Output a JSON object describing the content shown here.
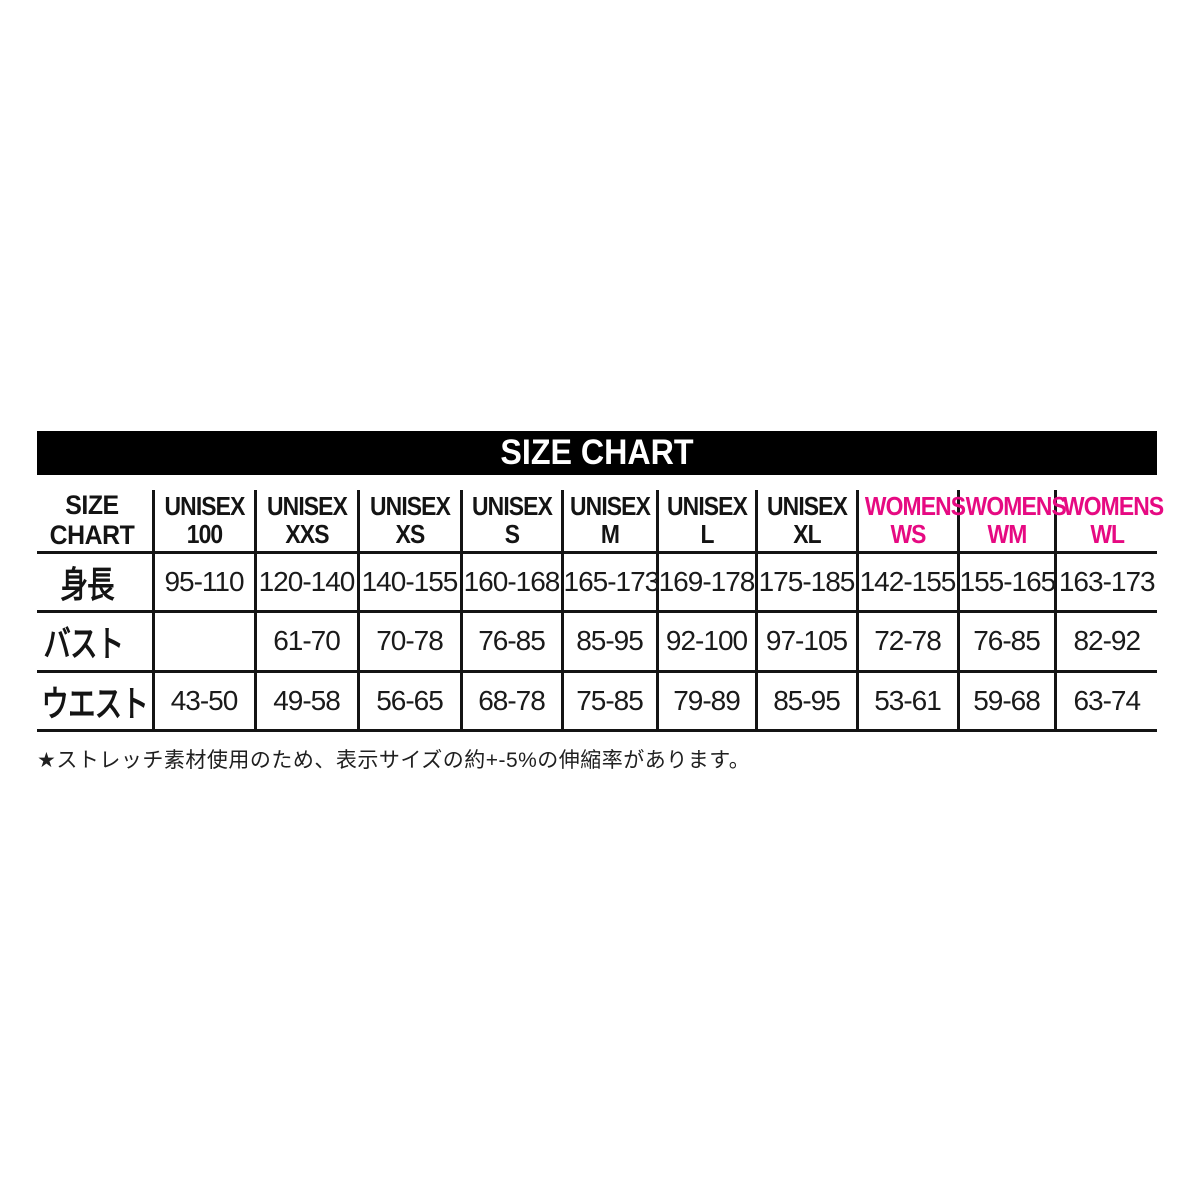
{
  "title": "SIZE CHART",
  "colors": {
    "title_bar_bg": "#000000",
    "title_text": "#ffffff",
    "grid_line": "#141414",
    "womens_pink": "#e60a82",
    "body_text": "#1a1a1a"
  },
  "table": {
    "corner_label_lines": [
      "SIZE",
      "CHART"
    ],
    "columns": [
      {
        "group": "UNISEX",
        "size": "100",
        "color": "black"
      },
      {
        "group": "UNISEX",
        "size": "XXS",
        "color": "black"
      },
      {
        "group": "UNISEX",
        "size": "XS",
        "color": "black"
      },
      {
        "group": "UNISEX",
        "size": "S",
        "color": "black"
      },
      {
        "group": "UNISEX",
        "size": "M",
        "color": "black"
      },
      {
        "group": "UNISEX",
        "size": "L",
        "color": "black"
      },
      {
        "group": "UNISEX",
        "size": "XL",
        "color": "black"
      },
      {
        "group": "WOMENS",
        "size": "WS",
        "color": "pink"
      },
      {
        "group": "WOMENS",
        "size": "WM",
        "color": "pink"
      },
      {
        "group": "WOMENS",
        "size": "WL",
        "color": "pink"
      }
    ],
    "rows": [
      {
        "key": "height",
        "label": "身長",
        "values": [
          "95-110",
          "120-140",
          "140-155",
          "160-168",
          "165-173",
          "169-178",
          "175-185",
          "142-155",
          "155-165",
          "163-173"
        ]
      },
      {
        "key": "bust",
        "label": "バスト",
        "values": [
          "",
          "61-70",
          "70-78",
          "76-85",
          "85-95",
          "92-100",
          "97-105",
          "72-78",
          "76-85",
          "82-92"
        ]
      },
      {
        "key": "waist",
        "label": "ウエスト",
        "values": [
          "43-50",
          "49-58",
          "56-65",
          "68-78",
          "75-85",
          "79-89",
          "85-95",
          "53-61",
          "59-68",
          "63-74"
        ]
      }
    ]
  },
  "footnote": "★ストレッチ素材使用のため、表示サイズの約+-5%の伸縮率があります。"
}
